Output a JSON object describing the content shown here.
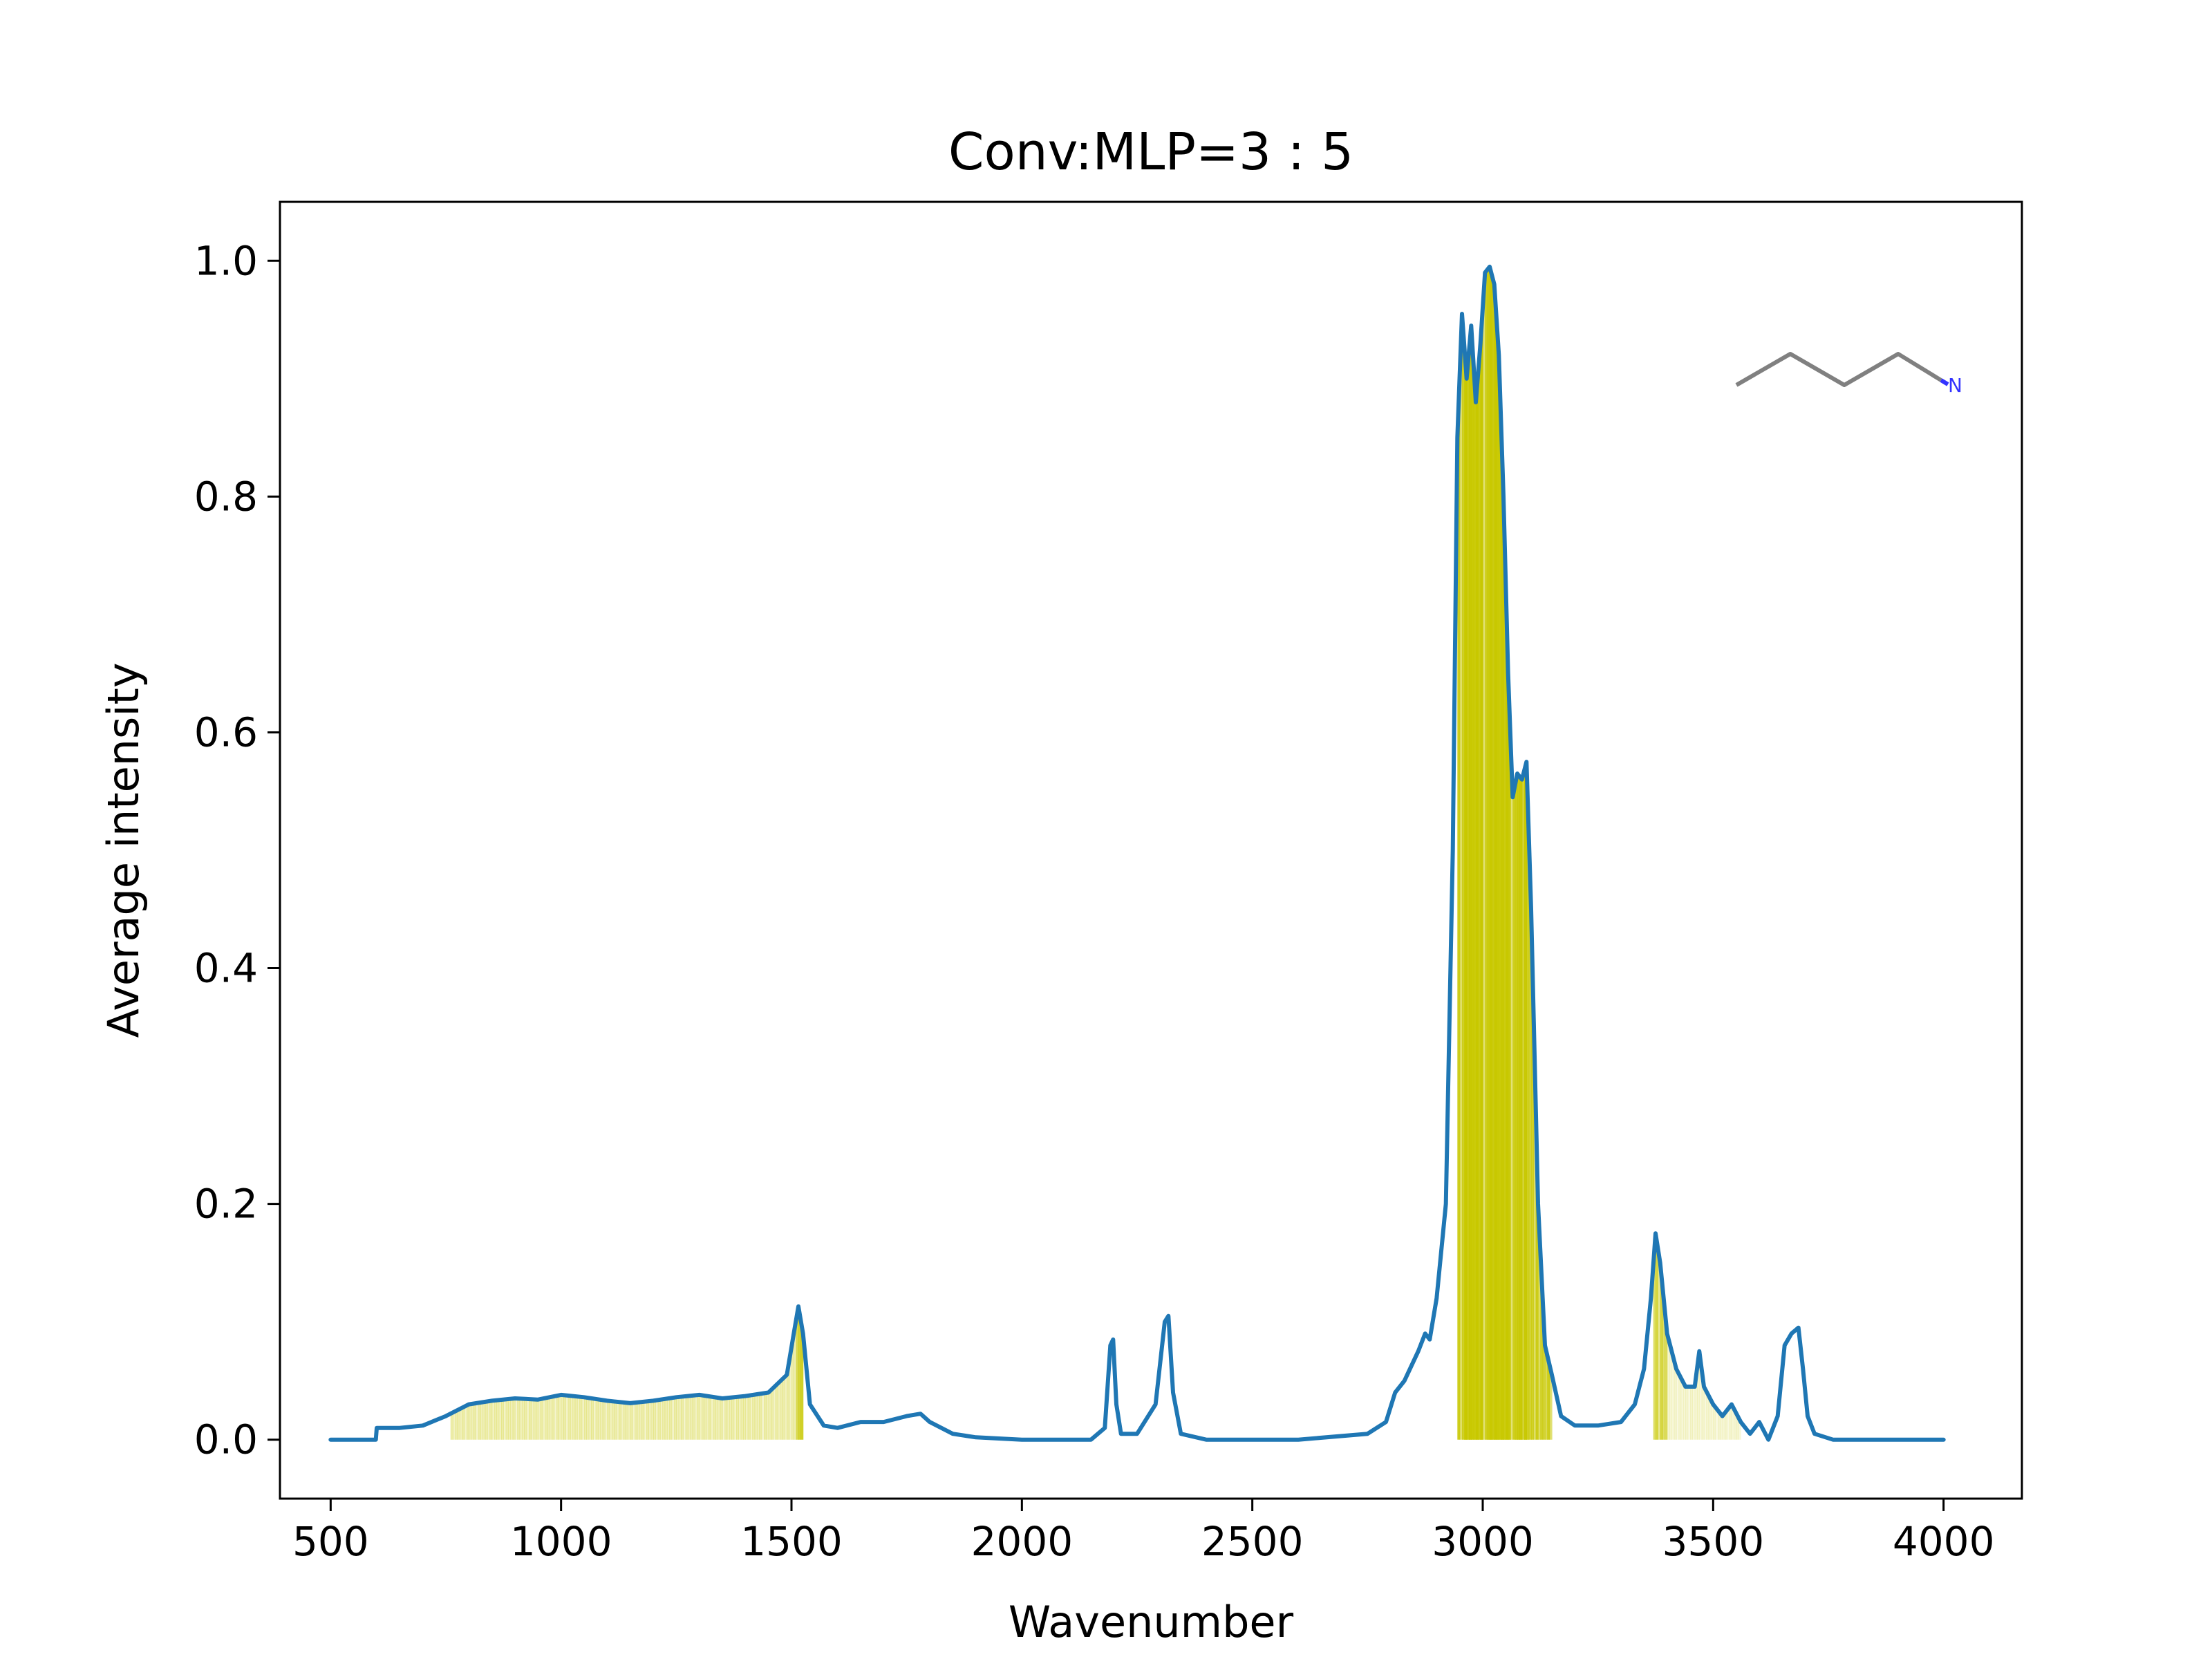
{
  "chart_data": {
    "type": "line",
    "title": "Conv:MLP=3 : 5",
    "xlabel": "Wavenumber",
    "ylabel": "Average intensity",
    "xlim": [
      390,
      4170
    ],
    "ylim": [
      -0.05,
      1.05
    ],
    "xticks": [
      500,
      1000,
      1500,
      2000,
      2500,
      3000,
      3500,
      4000
    ],
    "yticks": [
      0.0,
      0.2,
      0.4,
      0.6,
      0.8,
      1.0
    ],
    "xtick_labels": [
      "500",
      "1000",
      "1500",
      "2000",
      "2500",
      "3000",
      "3500",
      "4000"
    ],
    "ytick_labels": [
      "0.0",
      "0.2",
      "0.4",
      "0.6",
      "0.8",
      "1.0"
    ],
    "grid": false,
    "legend": "none",
    "series": [
      {
        "color": "#1f77b4",
        "x": [
          500,
          598,
          600,
          650,
          700,
          750,
          800,
          850,
          900,
          950,
          1000,
          1050,
          1100,
          1150,
          1200,
          1250,
          1300,
          1350,
          1400,
          1450,
          1490,
          1505,
          1515,
          1525,
          1540,
          1570,
          1600,
          1650,
          1700,
          1750,
          1780,
          1800,
          1850,
          1900,
          2000,
          2150,
          2180,
          2192,
          2198,
          2205,
          2215,
          2250,
          2290,
          2310,
          2318,
          2328,
          2345,
          2400,
          2600,
          2750,
          2790,
          2810,
          2830,
          2860,
          2875,
          2885,
          2900,
          2920,
          2935,
          2945,
          2955,
          2965,
          2975,
          2985,
          2995,
          3005,
          3015,
          3025,
          3035,
          3045,
          3055,
          3065,
          3075,
          3085,
          3095,
          3105,
          3120,
          3135,
          3150,
          3170,
          3200,
          3250,
          3300,
          3330,
          3350,
          3365,
          3375,
          3385,
          3400,
          3420,
          3440,
          3460,
          3470,
          3480,
          3500,
          3520,
          3540,
          3560,
          3580,
          3600,
          3620,
          3640,
          3655,
          3670,
          3685,
          3695,
          3705,
          3720,
          3760,
          3850,
          4000
        ],
        "y": [
          0.0,
          0.0,
          0.01,
          0.01,
          0.012,
          0.02,
          0.03,
          0.033,
          0.035,
          0.034,
          0.038,
          0.036,
          0.033,
          0.031,
          0.033,
          0.036,
          0.038,
          0.035,
          0.037,
          0.04,
          0.055,
          0.09,
          0.113,
          0.09,
          0.03,
          0.012,
          0.01,
          0.015,
          0.015,
          0.02,
          0.022,
          0.015,
          0.005,
          0.002,
          0.0,
          0.0,
          0.01,
          0.08,
          0.085,
          0.03,
          0.005,
          0.005,
          0.03,
          0.1,
          0.105,
          0.04,
          0.005,
          0.0,
          0.0,
          0.005,
          0.015,
          0.04,
          0.05,
          0.075,
          0.09,
          0.085,
          0.12,
          0.2,
          0.5,
          0.85,
          0.955,
          0.9,
          0.945,
          0.88,
          0.93,
          0.99,
          0.995,
          0.98,
          0.92,
          0.8,
          0.65,
          0.545,
          0.565,
          0.56,
          0.575,
          0.45,
          0.2,
          0.08,
          0.055,
          0.02,
          0.012,
          0.012,
          0.015,
          0.03,
          0.06,
          0.12,
          0.175,
          0.15,
          0.09,
          0.06,
          0.045,
          0.045,
          0.075,
          0.045,
          0.03,
          0.02,
          0.03,
          0.015,
          0.005,
          0.015,
          0.0,
          0.02,
          0.08,
          0.09,
          0.095,
          0.06,
          0.02,
          0.005,
          0.0,
          0.0,
          0.0
        ]
      }
    ],
    "attention_bands": {
      "color": "#c8c800",
      "ranges": [
        [
          760,
          1510,
          0.35
        ],
        [
          1510,
          1525,
          0.9
        ],
        [
          2945,
          3150,
          0.9
        ],
        [
          2960,
          3000,
          1.0
        ],
        [
          3010,
          3060,
          1.0
        ],
        [
          3070,
          3100,
          0.85
        ],
        [
          3370,
          3400,
          0.75
        ],
        [
          3400,
          3560,
          0.2
        ]
      ]
    },
    "inset_molecule": {
      "label": "N",
      "bond_color": "#808080",
      "atom_color": "#3333ff"
    }
  }
}
